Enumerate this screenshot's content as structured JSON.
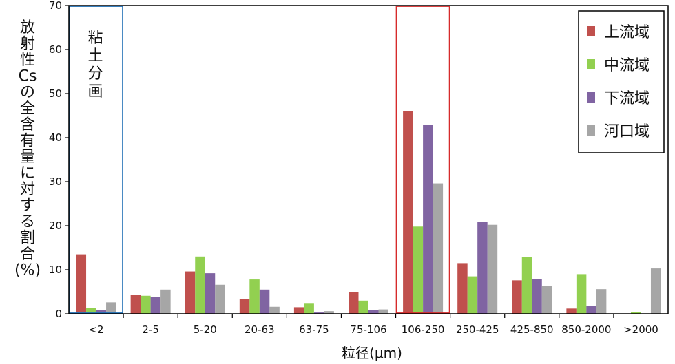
{
  "chart_data": {
    "type": "bar",
    "title": "",
    "xlabel": "粒径(μm)",
    "ylabel": "放射性Csの全含有量に対する割合(%)",
    "ylim": [
      0,
      70
    ],
    "yticks": [
      0,
      10,
      20,
      30,
      40,
      50,
      60,
      70
    ],
    "categories": [
      "<2",
      "2-5",
      "5-20",
      "20-63",
      "63-75",
      "75-106",
      "106-250",
      "250-425",
      "425-850",
      "850-2000",
      ">2000"
    ],
    "series": [
      {
        "name": "上流域",
        "color": "#c0504d",
        "values": [
          13.5,
          4.3,
          9.6,
          3.3,
          1.5,
          4.9,
          46.0,
          11.5,
          7.6,
          1.2,
          0.0
        ]
      },
      {
        "name": "中流域",
        "color": "#92d050",
        "values": [
          1.4,
          4.1,
          13.0,
          7.8,
          2.3,
          3.0,
          19.8,
          8.5,
          12.9,
          9.0,
          0.4
        ]
      },
      {
        "name": "下流域",
        "color": "#8064a2",
        "values": [
          0.9,
          3.8,
          9.2,
          5.5,
          0.3,
          0.9,
          42.9,
          20.8,
          7.9,
          1.8,
          0.0
        ]
      },
      {
        "name": "河口域",
        "color": "#a6a6a6",
        "values": [
          2.6,
          5.5,
          6.6,
          1.6,
          0.6,
          1.0,
          29.6,
          20.2,
          6.4,
          5.6,
          10.3
        ]
      }
    ],
    "legend_position": "top-right",
    "grid": false,
    "annotations": [
      {
        "text": "粘土分画",
        "box_color": "#1f6fb5",
        "category": "<2"
      },
      {
        "text": "",
        "box_color": "#d62b2b",
        "category": "106-250"
      }
    ]
  }
}
